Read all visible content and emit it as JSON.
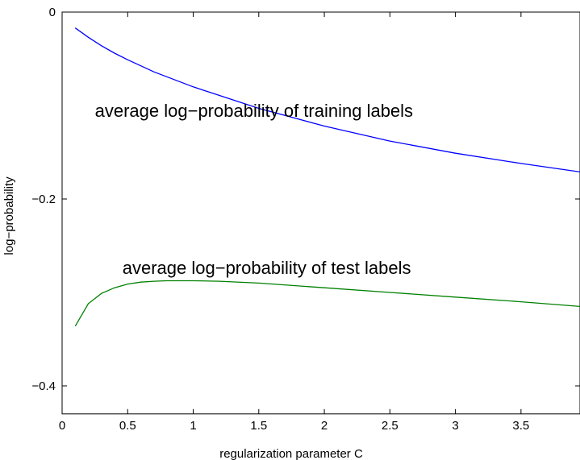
{
  "chart_data": {
    "type": "line",
    "title": "",
    "xlabel": "regularization parameter C",
    "ylabel": "log−probability",
    "xlim": [
      0,
      3.95
    ],
    "ylim": [
      -0.43,
      0
    ],
    "grid": false,
    "xticks": [
      {
        "value": 0,
        "label": "0"
      },
      {
        "value": 0.5,
        "label": "0.5"
      },
      {
        "value": 1,
        "label": "1"
      },
      {
        "value": 1.5,
        "label": "1.5"
      },
      {
        "value": 2,
        "label": "2"
      },
      {
        "value": 2.5,
        "label": "2.5"
      },
      {
        "value": 3,
        "label": "3"
      },
      {
        "value": 3.5,
        "label": "3.5"
      }
    ],
    "yticks": [
      {
        "value": 0,
        "label": "0"
      },
      {
        "value": -0.2,
        "label": "−0.2"
      },
      {
        "value": -0.4,
        "label": "−0.4"
      }
    ],
    "series": [
      {
        "color": "#0000ff",
        "x": [
          0.1,
          0.2,
          0.3,
          0.4,
          0.5,
          0.7,
          1.0,
          1.5,
          2.0,
          2.5,
          3.0,
          3.5,
          3.95
        ],
        "y": [
          -0.017,
          -0.027,
          -0.036,
          -0.044,
          -0.051,
          -0.064,
          -0.08,
          -0.103,
          -0.122,
          -0.138,
          -0.151,
          -0.162,
          -0.171
        ]
      },
      {
        "color": "#008000",
        "x": [
          0.1,
          0.2,
          0.3,
          0.4,
          0.5,
          0.6,
          0.7,
          0.8,
          1.0,
          1.2,
          1.5,
          2.0,
          2.5,
          3.0,
          3.5,
          3.95
        ],
        "y": [
          -0.336,
          -0.312,
          -0.301,
          -0.295,
          -0.291,
          -0.289,
          -0.288,
          -0.2875,
          -0.2875,
          -0.288,
          -0.29,
          -0.295,
          -0.3,
          -0.305,
          -0.31,
          -0.315
        ]
      }
    ],
    "annotations": [
      {
        "text": "average log−probability of training labels",
        "x": 0.25,
        "y": -0.112
      },
      {
        "text": "average log−probability of test labels",
        "x": 0.46,
        "y": -0.28
      }
    ]
  }
}
